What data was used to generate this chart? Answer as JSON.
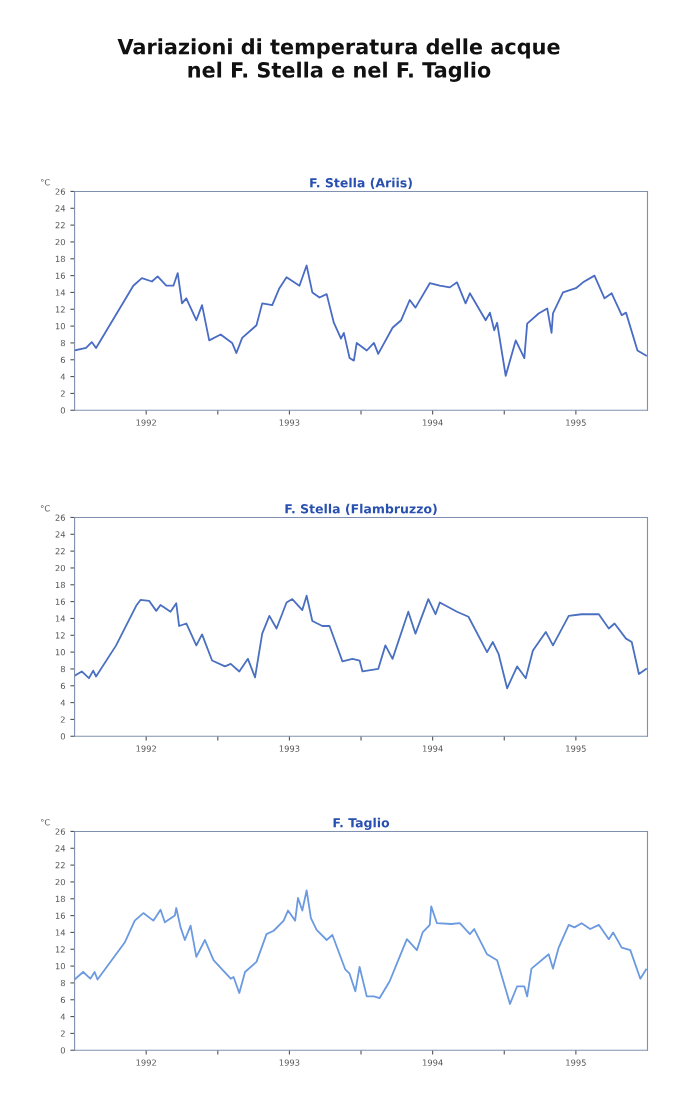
{
  "chart_data": [
    {
      "type": "line",
      "title": "Variazioni di temperatura delle acque\nnel F. Stella e nel F. Taglio",
      "subtitle": "F. Stella (Ariis)",
      "ylabel": "°C",
      "x": [
        1992.0,
        1992.08,
        1992.12,
        1992.15,
        1992.41,
        1992.47,
        1992.54,
        1992.58,
        1992.64,
        1992.69,
        1992.72,
        1992.75,
        1992.78,
        1992.85,
        1992.89,
        1992.94,
        1993.02,
        1993.1,
        1993.13,
        1993.17,
        1993.27,
        1993.31,
        1993.38,
        1993.43,
        1993.48,
        1993.57,
        1993.62,
        1993.66,
        1993.71,
        1993.76,
        1993.81,
        1993.86,
        1993.88,
        1993.92,
        1993.95,
        1993.97,
        1994.04,
        1994.09,
        1994.12,
        1994.22,
        1994.28,
        1994.34,
        1994.38,
        1994.48,
        1994.55,
        1994.62,
        1994.67,
        1994.73,
        1994.76,
        1994.87,
        1994.9,
        1994.93,
        1994.95,
        1995.01,
        1995.08,
        1995.14,
        1995.16,
        1995.24,
        1995.3,
        1995.33,
        1995.34,
        1995.41,
        1995.5,
        1995.55,
        1995.63,
        1995.7,
        1995.75,
        1995.82,
        1995.85,
        1995.93,
        1995.99
      ],
      "series": [
        {
          "color": "#4a6cc4",
          "values": [
            7.1,
            7.4,
            8.1,
            7.4,
            14.8,
            15.7,
            15.3,
            15.9,
            14.8,
            14.8,
            16.3,
            12.7,
            13.3,
            10.7,
            12.5,
            8.3,
            9.0,
            8.0,
            6.8,
            8.6,
            10.1,
            12.7,
            12.5,
            14.5,
            15.8,
            14.8,
            17.2,
            14.0,
            13.4,
            13.8,
            10.4,
            8.5,
            9.2,
            6.2,
            5.9,
            8.0,
            7.1,
            8.0,
            6.7,
            9.8,
            10.7,
            13.1,
            12.2,
            15.1,
            14.8,
            14.6,
            15.2,
            12.7,
            13.9,
            10.7,
            11.6,
            9.5,
            10.4,
            4.1,
            8.3,
            6.2,
            10.3,
            11.5,
            12.1,
            9.2,
            11.5,
            14.0,
            14.5,
            15.2,
            16.0,
            13.3,
            13.9,
            11.3,
            11.6,
            7.1,
            6.5
          ]
        }
      ],
      "xlim": [
        1992,
        1996
      ],
      "xticks": [
        {
          "value": 1992.5,
          "label": "1992"
        },
        {
          "value": 1993,
          "label": null
        },
        {
          "value": 1993.5,
          "label": "1993"
        },
        {
          "value": 1994,
          "label": null
        },
        {
          "value": 1994.5,
          "label": "1994"
        },
        {
          "value": 1995,
          "label": null
        },
        {
          "value": 1995.5,
          "label": "1995"
        }
      ],
      "ylim": [
        0,
        26
      ],
      "yticks": [
        0,
        2,
        4,
        6,
        8,
        10,
        12,
        14,
        16,
        18,
        20,
        22,
        24,
        26
      ],
      "grid": false,
      "legend": false
    },
    {
      "type": "line",
      "subtitle": "F. Stella (Flambruzzo)",
      "ylabel": "°C",
      "x": [
        1992.0,
        1992.05,
        1992.1,
        1992.13,
        1992.15,
        1992.29,
        1992.43,
        1992.46,
        1992.52,
        1992.57,
        1992.6,
        1992.67,
        1992.71,
        1992.73,
        1992.78,
        1992.85,
        1992.89,
        1992.96,
        1993.05,
        1993.09,
        1993.15,
        1993.21,
        1993.26,
        1993.31,
        1993.36,
        1993.41,
        1993.48,
        1993.52,
        1993.59,
        1993.62,
        1993.66,
        1993.73,
        1993.78,
        1993.87,
        1993.94,
        1993.99,
        1994.01,
        1994.12,
        1994.17,
        1994.22,
        1994.33,
        1994.38,
        1994.47,
        1994.52,
        1994.55,
        1994.67,
        1994.75,
        1994.88,
        1994.92,
        1994.96,
        1995.02,
        1995.09,
        1995.15,
        1995.2,
        1995.29,
        1995.34,
        1995.45,
        1995.54,
        1995.66,
        1995.73,
        1995.77,
        1995.85,
        1995.89,
        1995.94,
        1995.99
      ],
      "series": [
        {
          "color": "#4a70c0",
          "values": [
            7.2,
            7.7,
            6.9,
            7.8,
            7.1,
            10.8,
            15.5,
            16.2,
            16.1,
            14.9,
            15.6,
            14.8,
            15.8,
            13.1,
            13.4,
            10.8,
            12.1,
            9.0,
            8.3,
            8.6,
            7.7,
            9.2,
            7.0,
            12.2,
            14.3,
            12.8,
            15.9,
            16.3,
            15.0,
            16.7,
            13.7,
            13.1,
            13.1,
            8.9,
            9.2,
            9.0,
            7.7,
            8.0,
            10.8,
            9.2,
            14.8,
            12.2,
            16.3,
            14.5,
            15.9,
            14.8,
            14.2,
            10.0,
            11.2,
            9.8,
            5.7,
            8.3,
            6.9,
            10.2,
            12.4,
            10.8,
            14.3,
            14.5,
            14.5,
            12.8,
            13.4,
            11.6,
            11.2,
            7.4,
            8.0
          ]
        }
      ],
      "xlim": [
        1992,
        1996
      ],
      "xticks": [
        {
          "value": 1992.5,
          "label": "1992"
        },
        {
          "value": 1993,
          "label": null
        },
        {
          "value": 1993.5,
          "label": "1993"
        },
        {
          "value": 1994,
          "label": null
        },
        {
          "value": 1994.5,
          "label": "1994"
        },
        {
          "value": 1995,
          "label": null
        },
        {
          "value": 1995.5,
          "label": "1995"
        }
      ],
      "ylim": [
        0,
        26
      ],
      "yticks": [
        0,
        2,
        4,
        6,
        8,
        10,
        12,
        14,
        16,
        18,
        20,
        22,
        24,
        26
      ],
      "grid": false,
      "legend": false
    },
    {
      "type": "line",
      "subtitle": "F. Taglio",
      "ylabel": "°C",
      "x": [
        1992.0,
        1992.06,
        1992.11,
        1992.14,
        1992.16,
        1992.35,
        1992.42,
        1992.48,
        1992.55,
        1992.6,
        1992.63,
        1992.7,
        1992.71,
        1992.74,
        1992.77,
        1992.81,
        1992.85,
        1992.91,
        1992.97,
        1993.09,
        1993.11,
        1993.15,
        1993.19,
        1993.27,
        1993.34,
        1993.39,
        1993.46,
        1993.49,
        1993.54,
        1993.56,
        1993.59,
        1993.62,
        1993.65,
        1993.69,
        1993.76,
        1993.8,
        1993.89,
        1993.92,
        1993.96,
        1993.99,
        1994.04,
        1994.09,
        1994.13,
        1994.2,
        1994.25,
        1994.32,
        1994.39,
        1994.43,
        1994.48,
        1994.49,
        1994.53,
        1994.63,
        1994.69,
        1994.76,
        1994.79,
        1994.88,
        1994.95,
        1995.04,
        1995.09,
        1995.14,
        1995.16,
        1995.19,
        1995.31,
        1995.34,
        1995.38,
        1995.45,
        1995.49,
        1995.54,
        1995.6,
        1995.66,
        1995.73,
        1995.76,
        1995.82,
        1995.88,
        1995.95,
        1995.99
      ],
      "series": [
        {
          "color": "#6b9ae0",
          "values": [
            8.4,
            9.3,
            8.5,
            9.3,
            8.4,
            12.8,
            15.4,
            16.3,
            15.4,
            16.7,
            15.2,
            16.0,
            16.9,
            14.6,
            13.1,
            14.8,
            11.1,
            13.1,
            10.7,
            8.5,
            8.7,
            6.8,
            9.3,
            10.5,
            13.8,
            14.2,
            15.4,
            16.6,
            15.4,
            18.1,
            16.6,
            19.0,
            15.7,
            14.3,
            13.1,
            13.7,
            9.6,
            9.1,
            7.0,
            9.9,
            6.4,
            6.4,
            6.2,
            8.2,
            10.3,
            13.2,
            11.9,
            14.0,
            14.9,
            17.1,
            15.1,
            15.0,
            15.1,
            13.8,
            14.4,
            11.4,
            10.7,
            5.5,
            7.6,
            7.6,
            6.4,
            9.7,
            11.4,
            9.7,
            12.2,
            14.9,
            14.6,
            15.1,
            14.4,
            14.9,
            13.2,
            14.0,
            12.2,
            11.9,
            8.5,
            9.6
          ]
        }
      ],
      "xlim": [
        1992,
        1996
      ],
      "xticks": [
        {
          "value": 1992.5,
          "label": "1992"
        },
        {
          "value": 1993,
          "label": null
        },
        {
          "value": 1993.5,
          "label": "1993"
        },
        {
          "value": 1994,
          "label": null
        },
        {
          "value": 1994.5,
          "label": "1994"
        },
        {
          "value": 1995,
          "label": null
        },
        {
          "value": 1995.5,
          "label": "1995"
        }
      ],
      "ylim": [
        0,
        26
      ],
      "yticks": [
        0,
        2,
        4,
        6,
        8,
        10,
        12,
        14,
        16,
        18,
        20,
        22,
        24,
        26
      ],
      "grid": false,
      "legend": false
    }
  ]
}
